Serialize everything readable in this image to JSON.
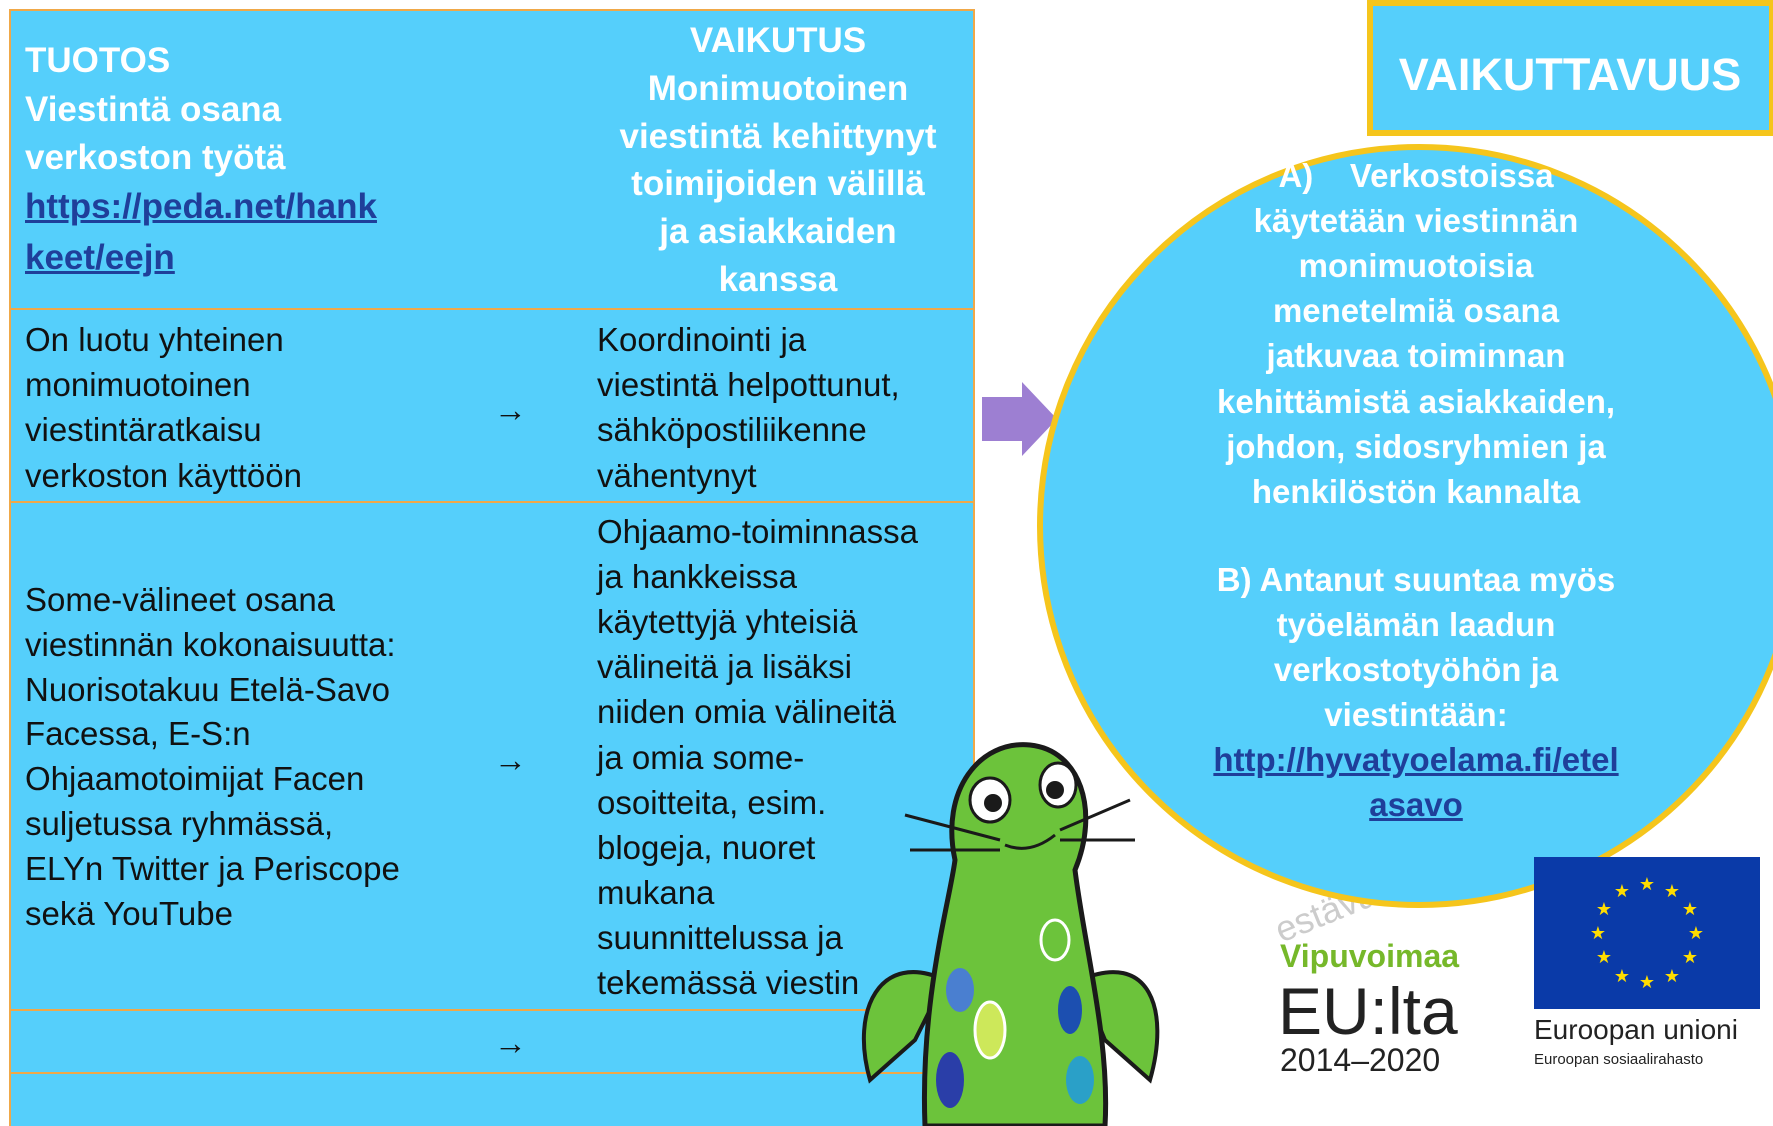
{
  "table": {
    "header": {
      "output": [
        "TUOTOS",
        "Viestintä osana",
        "verkoston työtä"
      ],
      "output_link": [
        "https://peda.net/hank",
        "keet/eejn"
      ],
      "impact": [
        "VAIKUTUS",
        "Monimuotoinen",
        "viestintä kehittynyt",
        "toimijoiden välillä",
        "ja asiakkaiden",
        "kanssa"
      ]
    },
    "rows": [
      {
        "output": [
          "On luotu yhteinen",
          "monimuotoinen",
          "viestintäratkaisu",
          "verkoston käyttöön"
        ],
        "arrow": "→",
        "impact": [
          "Koordinointi ja",
          "viestintä helpottunut,",
          "sähköpostiliikenne",
          "vähentynyt"
        ]
      },
      {
        "output": [
          "Some-välineet osana",
          "viestinnän kokonaisuutta:",
          "Nuorisotakuu Etelä-Savo",
          "Facessa, E-S:n",
          "Ohjaamotoimijat Facen",
          "suljetussa ryhmässä,",
          "ELYn Twitter ja Periscope",
          "sekä YouTube"
        ],
        "arrow": "→",
        "impact": [
          "Ohjaamo-toiminnassa",
          "ja hankkeissa",
          "käytettyjä yhteisiä",
          "välineitä ja lisäksi",
          "niiden omia välineitä",
          "ja omia some-",
          "osoitteita, esim.",
          "blogeja, nuoret",
          "mukana",
          "suunnittelussa ja",
          "tekemässä viestin"
        ]
      },
      {
        "arrow": "→"
      }
    ]
  },
  "impact_box": {
    "title": "VAIKUTTAVUUS",
    "a": [
      "A)    Verkostoissa",
      "käytetään viestinnän",
      "monimuotoisia",
      "menetelmiä osana",
      "jatkuvaa toiminnan",
      "kehittämistä asiakkaiden,",
      "johdon, sidosryhmien ja",
      "henkilöstön kannalta"
    ],
    "b": [
      "B) Antanut suuntaa myös",
      "työelämän laadun",
      "verkostotyöhön ja",
      "viestintään:"
    ],
    "link": [
      "http://hyvatyoelama.fi/etel",
      "asavo"
    ]
  },
  "watermark": "estävää k",
  "logos": {
    "vipuvoimaa": "Vipuvoimaa",
    "eu": "EU:lta",
    "years": "2014–2020",
    "union": "Euroopan unioni",
    "fund": "Euroopan sosiaalirahasto"
  }
}
